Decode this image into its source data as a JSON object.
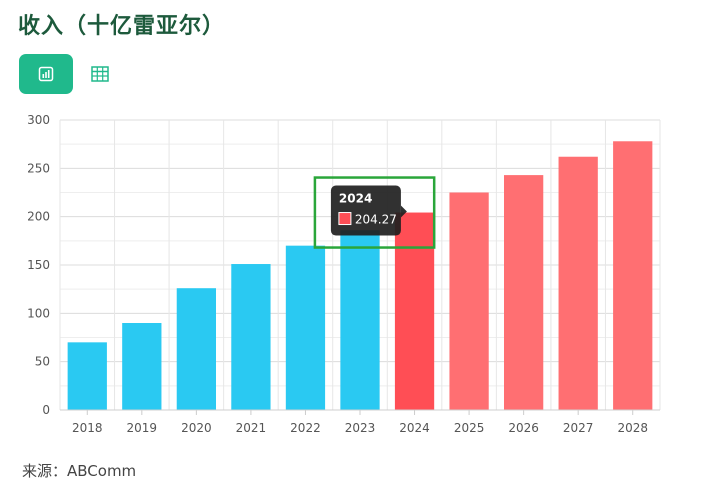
{
  "page": {
    "title": "收入（十亿雷亚尔）",
    "source": "来源：ABComm"
  },
  "toolbar": {
    "chart_icon": "bar-chart-icon",
    "table_icon": "table-grid-icon"
  },
  "colors": {
    "actual": "#2ac9f2",
    "forecast": "#ff6f72",
    "highlight": "#ff4e55",
    "tooltip_bg": "#1f1f1f",
    "highlight_box": "#2aa63a"
  },
  "chart_data": {
    "type": "bar",
    "categories": [
      "2018",
      "2019",
      "2020",
      "2021",
      "2022",
      "2023",
      "2024",
      "2025",
      "2026",
      "2027",
      "2028"
    ],
    "values": [
      70,
      90,
      126,
      151,
      170,
      186,
      204.27,
      225,
      243,
      262,
      278
    ],
    "bar_colors": [
      "actual",
      "actual",
      "actual",
      "actual",
      "actual",
      "actual",
      "highlight",
      "forecast",
      "forecast",
      "forecast",
      "forecast"
    ],
    "ylim": [
      0,
      300
    ],
    "yticks": [
      0,
      50,
      100,
      150,
      200,
      250,
      300
    ],
    "grid": true,
    "tooltip": {
      "category": "2024",
      "value": "204.27"
    }
  }
}
